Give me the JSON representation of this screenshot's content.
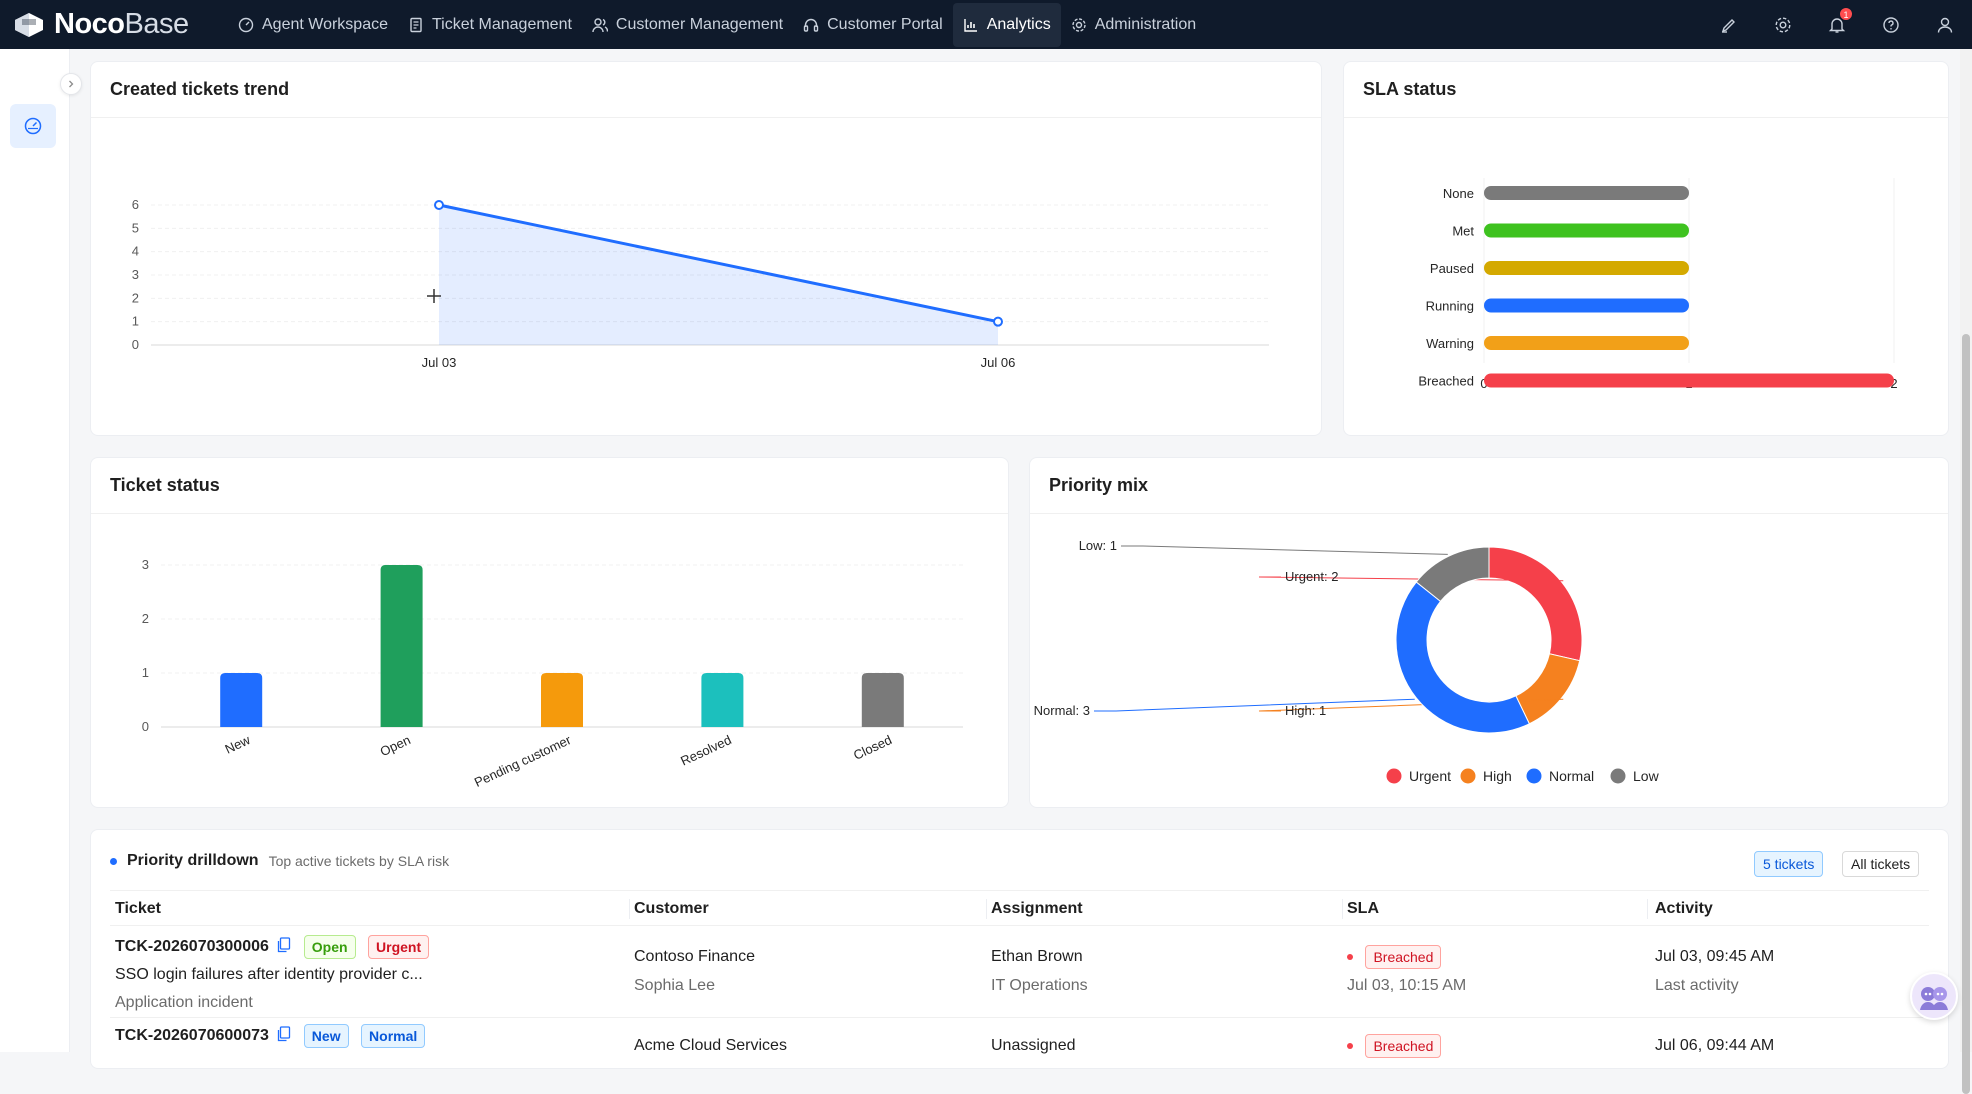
{
  "app": {
    "brand_bold": "Noco",
    "brand_light": "Base"
  },
  "nav": [
    {
      "label": "Agent Workspace",
      "icon": "dashboard-icon"
    },
    {
      "label": "Ticket Management",
      "icon": "document-icon"
    },
    {
      "label": "Customer Management",
      "icon": "users-icon"
    },
    {
      "label": "Customer Portal",
      "icon": "headset-icon"
    },
    {
      "label": "Analytics",
      "icon": "bar-chart-icon",
      "active": true
    },
    {
      "label": "Administration",
      "icon": "gear-icon"
    }
  ],
  "header_icons": [
    "brush-icon",
    "settings-icon",
    "bell-icon",
    "help-icon",
    "user-icon"
  ],
  "notification_count": "1",
  "cards": {
    "trend_title": "Created tickets trend",
    "sla_title": "SLA status",
    "status_title": "Ticket status",
    "priority_title": "Priority mix"
  },
  "chart_data": [
    {
      "type": "area",
      "title": "Created tickets trend",
      "x": [
        "Jul 03",
        "Jul 06"
      ],
      "values": [
        6,
        1
      ],
      "y_ticks": [
        0,
        1,
        2,
        3,
        4,
        5,
        6
      ],
      "ylim": [
        0,
        6
      ],
      "grid": true
    },
    {
      "type": "bar",
      "orientation": "horizontal",
      "title": "SLA status",
      "categories": [
        "None",
        "Met",
        "Paused",
        "Running",
        "Warning",
        "Breached"
      ],
      "values": [
        1,
        1,
        1,
        1,
        1,
        2
      ],
      "colors": [
        "#7a7a7a",
        "#3ec21f",
        "#d4a900",
        "#1f6dff",
        "#f2a018",
        "#f5404a"
      ],
      "x_ticks": [
        0,
        1,
        2
      ],
      "xlim": [
        0,
        2
      ]
    },
    {
      "type": "bar",
      "title": "Ticket status",
      "categories": [
        "New",
        "Open",
        "Pending customer",
        "Resolved",
        "Closed"
      ],
      "values": [
        1,
        3,
        1,
        1,
        1
      ],
      "colors": [
        "#1f6dff",
        "#1f9f5c",
        "#f59a0c",
        "#1cc0bd",
        "#7a7a7a"
      ],
      "y_ticks": [
        0,
        1,
        2,
        3
      ],
      "ylim": [
        0,
        3
      ]
    },
    {
      "type": "pie",
      "title": "Priority mix",
      "categories": [
        "Urgent",
        "High",
        "Normal",
        "Low"
      ],
      "values": [
        2,
        1,
        3,
        1
      ],
      "colors": [
        "#f5404a",
        "#f5811f",
        "#1f6dff",
        "#7a7a7a"
      ],
      "labels": [
        "Urgent: 2",
        "High: 1",
        "Normal: 3",
        "Low: 1"
      ],
      "legend": "bottom"
    }
  ],
  "drilldown": {
    "title": "Priority drilldown",
    "subtitle": "Top active tickets by SLA risk",
    "count_button": "5 tickets",
    "all_button": "All tickets",
    "columns": [
      "Ticket",
      "Customer",
      "Assignment",
      "SLA",
      "Activity"
    ],
    "rows": [
      {
        "id": "TCK-2026070300006",
        "status": "Open",
        "priority": "Urgent",
        "subject": "SSO login failures after identity provider c...",
        "category": "Application incident",
        "customer": "Contoso Finance",
        "contact": "Sophia Lee",
        "assignee": "Ethan Brown",
        "team": "IT Operations",
        "sla": "Breached",
        "sla_time": "Jul 03, 10:15 AM",
        "activity": "Jul 03, 09:45 AM",
        "activity_label": "Last activity"
      },
      {
        "id": "TCK-2026070600073",
        "status": "New",
        "priority": "Normal",
        "customer": "Acme Cloud Services",
        "assignee": "Unassigned",
        "sla": "Breached",
        "activity": "Jul 06, 09:44 AM"
      }
    ]
  }
}
